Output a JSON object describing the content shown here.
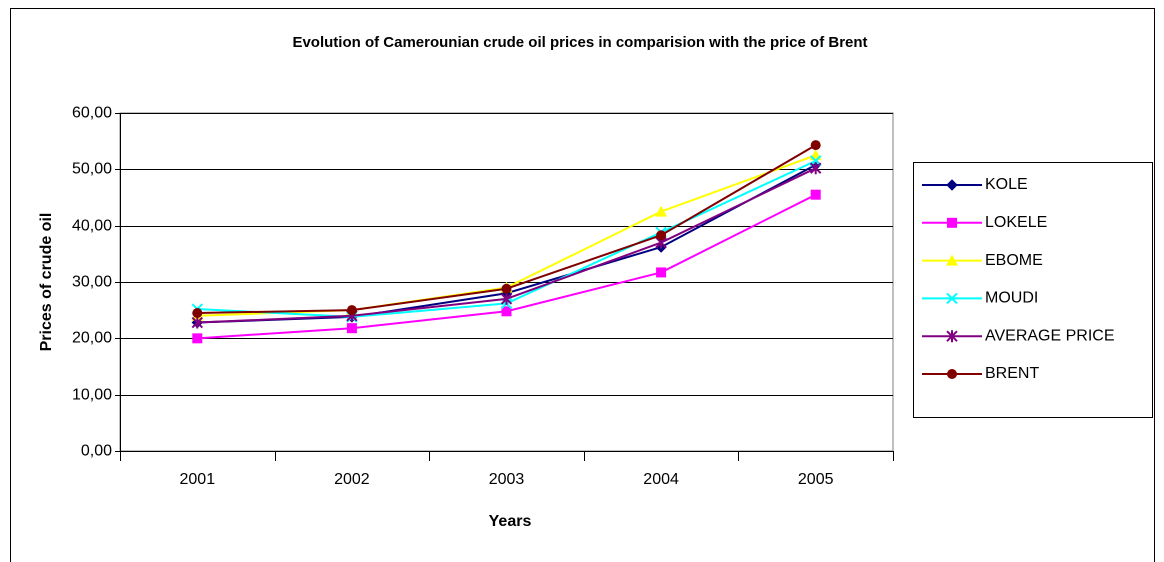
{
  "chart_data": {
    "type": "line",
    "title": "Evolution of Camerounian crude oil prices in comparision with the price of Brent",
    "xlabel": "Years",
    "ylabel": "Prices of crude oil",
    "categories": [
      "2001",
      "2002",
      "2003",
      "2004",
      "2005"
    ],
    "series": [
      {
        "name": "KOLE",
        "color": "#000080",
        "marker": "diamond",
        "values": [
          22.8,
          23.8,
          28.0,
          36.2,
          50.8
        ]
      },
      {
        "name": "LOKELE",
        "color": "#ff00ff",
        "marker": "square",
        "values": [
          20.0,
          21.8,
          24.8,
          31.7,
          45.5
        ]
      },
      {
        "name": "EBOME",
        "color": "#ffff00",
        "marker": "triangle",
        "values": [
          24.0,
          25.0,
          29.0,
          42.5,
          52.5
        ]
      },
      {
        "name": "MOUDI",
        "color": "#00ffff",
        "marker": "x",
        "values": [
          25.2,
          23.8,
          26.2,
          38.8,
          51.5
        ]
      },
      {
        "name": "AVERAGE PRICE",
        "color": "#800080",
        "marker": "asterisk",
        "values": [
          22.8,
          24.0,
          27.0,
          37.0,
          50.2
        ]
      },
      {
        "name": "BRENT",
        "color": "#800000",
        "marker": "circle",
        "values": [
          24.5,
          25.0,
          28.8,
          38.3,
          54.3
        ]
      }
    ],
    "ylim": [
      0,
      60
    ],
    "yticks": [
      {
        "value": 0,
        "label": "0,00"
      },
      {
        "value": 10,
        "label": "10,00"
      },
      {
        "value": 20,
        "label": "20,00"
      },
      {
        "value": 30,
        "label": "30,00"
      },
      {
        "value": 40,
        "label": "40,00"
      },
      {
        "value": 50,
        "label": "50,00"
      },
      {
        "value": 60,
        "label": "60,00"
      }
    ],
    "grid": true,
    "legend": "right"
  }
}
